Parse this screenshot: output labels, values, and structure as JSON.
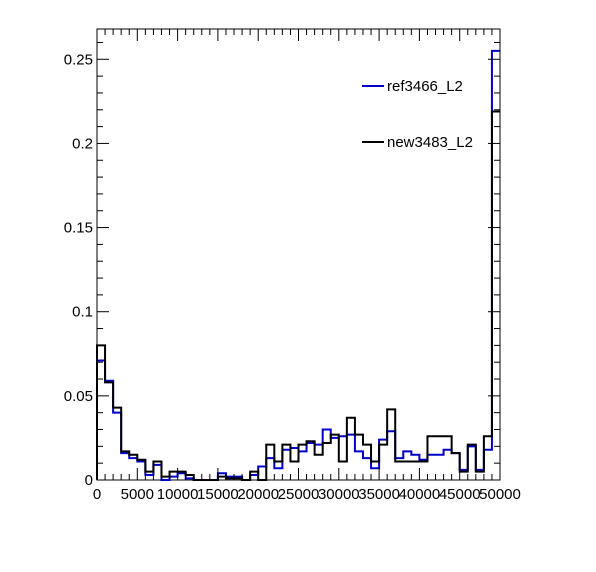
{
  "chart_data": {
    "type": "line",
    "step": true,
    "title": "",
    "xlabel": "",
    "ylabel": "",
    "xlim": [
      0,
      50000
    ],
    "ylim": [
      0,
      0.268
    ],
    "grid": false,
    "legend_position": "top-right",
    "bin_edges": [
      0,
      1000,
      2000,
      3000,
      4000,
      5000,
      6000,
      7000,
      8000,
      9000,
      10000,
      11000,
      12000,
      13000,
      14000,
      15000,
      16000,
      17000,
      18000,
      19000,
      20000,
      21000,
      22000,
      23000,
      24000,
      25000,
      26000,
      27000,
      28000,
      29000,
      30000,
      31000,
      32000,
      33000,
      34000,
      35000,
      36000,
      37000,
      38000,
      39000,
      40000,
      41000,
      42000,
      43000,
      44000,
      45000,
      46000,
      47000,
      48000,
      49000,
      50000
    ],
    "x_ticks": [
      0,
      5000,
      10000,
      15000,
      20000,
      25000,
      30000,
      35000,
      40000,
      45000,
      50000
    ],
    "x_tick_labels": [
      "0",
      "5000",
      "10000",
      "15000",
      "20000",
      "25000",
      "30000",
      "35000",
      "40000",
      "45000",
      "50000"
    ],
    "y_ticks": [
      0,
      0.05,
      0.1,
      0.15,
      0.2,
      0.25
    ],
    "y_tick_labels": [
      "0",
      "0.05",
      "0.1",
      "0.15",
      "0.2",
      "0.25"
    ],
    "series": [
      {
        "name": "ref3466_L2",
        "color": "#0000cc",
        "values": [
          0.071,
          0.059,
          0.04,
          0.016,
          0.013,
          0.011,
          0.003,
          0.009,
          0.0,
          0.002,
          0.004,
          0.001,
          0.0,
          0.0,
          0.0,
          0.004,
          0.002,
          0.002,
          0.0,
          0.003,
          0.008,
          0.013,
          0.007,
          0.018,
          0.019,
          0.017,
          0.022,
          0.021,
          0.03,
          0.025,
          0.026,
          0.027,
          0.017,
          0.013,
          0.007,
          0.024,
          0.029,
          0.013,
          0.017,
          0.015,
          0.012,
          0.015,
          0.015,
          0.018,
          0.016,
          0.006,
          0.02,
          0.006,
          0.018,
          0.255
        ]
      },
      {
        "name": "new3483_L2",
        "color": "#000000",
        "values": [
          0.08,
          0.058,
          0.043,
          0.017,
          0.015,
          0.012,
          0.005,
          0.011,
          0.002,
          0.005,
          0.005,
          0.003,
          0.0,
          0.0,
          0.0,
          0.002,
          0.001,
          0.001,
          0.0,
          0.005,
          0.0,
          0.021,
          0.011,
          0.021,
          0.011,
          0.021,
          0.023,
          0.015,
          0.022,
          0.027,
          0.011,
          0.037,
          0.027,
          0.021,
          0.011,
          0.021,
          0.042,
          0.011,
          0.011,
          0.011,
          0.011,
          0.026,
          0.026,
          0.026,
          0.016,
          0.005,
          0.021,
          0.005,
          0.026,
          0.219
        ]
      }
    ]
  }
}
